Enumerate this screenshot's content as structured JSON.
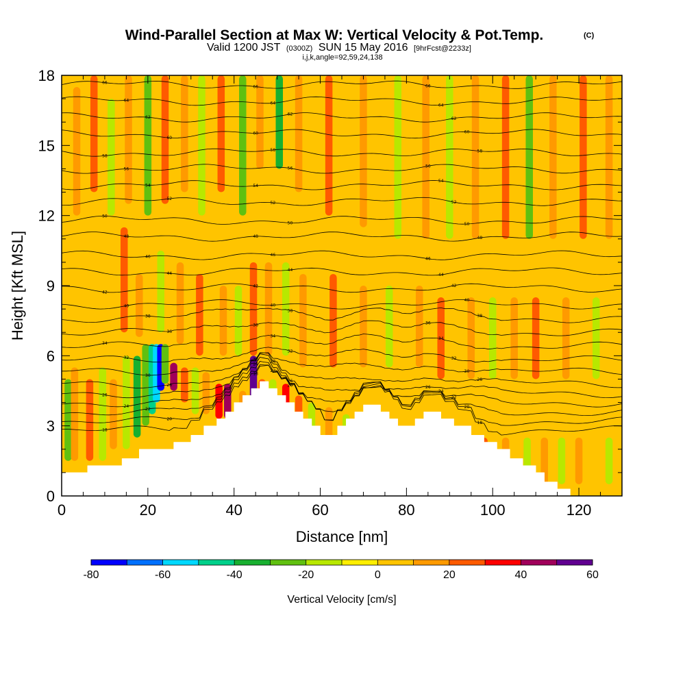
{
  "title": {
    "main": "Wind-Parallel Section at Max W: Vertical Velocity & Pot.Temp.",
    "copyright": "(C)",
    "valid_prefix": "Valid 1200 JST",
    "valid_utc": "(0300Z)",
    "valid_date": "SUN 15 May 2016",
    "forecast": "[9hrFcst@2233z]",
    "indices": "i,j,k,angle=92,59,24,138"
  },
  "chart_data": {
    "type": "heatmap",
    "xlabel": "Distance [nm]",
    "ylabel": "Height [Kft MSL]",
    "xlim": [
      0,
      130
    ],
    "ylim": [
      0,
      18
    ],
    "x_ticks": [
      0,
      20,
      40,
      60,
      80,
      100,
      120
    ],
    "y_ticks": [
      0,
      3,
      6,
      9,
      12,
      15,
      18
    ],
    "colorbar": {
      "label": "Vertical Velocity [cm/s]",
      "levels": [
        -80,
        -70,
        -60,
        -50,
        -40,
        -30,
        -20,
        -10,
        0,
        10,
        20,
        30,
        40,
        50,
        60
      ],
      "tick_labels": [
        "-80",
        "-60",
        "-40",
        "-20",
        "0",
        "20",
        "40",
        "60"
      ],
      "colors": [
        "#0000ff",
        "#0070ff",
        "#00d8ff",
        "#00d08a",
        "#18b030",
        "#60c010",
        "#b8e800",
        "#ffee00",
        "#ffc400",
        "#ff9a00",
        "#ff5a00",
        "#ff0000",
        "#a0005a",
        "#600090"
      ]
    },
    "background_velocity_cm_s": 0,
    "terrain_profile": [
      [
        0,
        1.0
      ],
      [
        6,
        1.0
      ],
      [
        6,
        1.3
      ],
      [
        14,
        1.3
      ],
      [
        14,
        1.6
      ],
      [
        18,
        1.6
      ],
      [
        18,
        2.0
      ],
      [
        26,
        2.0
      ],
      [
        26,
        2.3
      ],
      [
        30,
        2.3
      ],
      [
        30,
        2.6
      ],
      [
        33,
        2.6
      ],
      [
        33,
        3.0
      ],
      [
        36,
        3.0
      ],
      [
        36,
        3.3
      ],
      [
        38,
        3.3
      ],
      [
        38,
        3.6
      ],
      [
        40,
        3.6
      ],
      [
        40,
        4.0
      ],
      [
        42,
        4.0
      ],
      [
        42,
        4.3
      ],
      [
        44,
        4.3
      ],
      [
        44,
        4.6
      ],
      [
        46,
        4.6
      ],
      [
        46,
        4.9
      ],
      [
        48,
        4.9
      ],
      [
        48,
        4.6
      ],
      [
        50,
        4.6
      ],
      [
        50,
        4.3
      ],
      [
        52,
        4.3
      ],
      [
        52,
        4.0
      ],
      [
        54,
        4.0
      ],
      [
        54,
        3.6
      ],
      [
        56,
        3.6
      ],
      [
        56,
        3.3
      ],
      [
        58,
        3.3
      ],
      [
        58,
        3.0
      ],
      [
        60,
        3.0
      ],
      [
        60,
        2.6
      ],
      [
        64,
        2.6
      ],
      [
        64,
        3.0
      ],
      [
        66,
        3.0
      ],
      [
        66,
        3.3
      ],
      [
        68,
        3.3
      ],
      [
        68,
        3.6
      ],
      [
        70,
        3.6
      ],
      [
        70,
        3.9
      ],
      [
        74,
        3.9
      ],
      [
        74,
        3.6
      ],
      [
        76,
        3.6
      ],
      [
        76,
        3.3
      ],
      [
        78,
        3.3
      ],
      [
        78,
        3.0
      ],
      [
        82,
        3.0
      ],
      [
        82,
        3.3
      ],
      [
        84,
        3.3
      ],
      [
        84,
        3.6
      ],
      [
        88,
        3.6
      ],
      [
        88,
        3.3
      ],
      [
        91,
        3.3
      ],
      [
        91,
        3.0
      ],
      [
        95,
        3.0
      ],
      [
        95,
        2.6
      ],
      [
        98,
        2.6
      ],
      [
        98,
        2.3
      ],
      [
        101,
        2.3
      ],
      [
        101,
        2.0
      ],
      [
        104,
        2.0
      ],
      [
        104,
        1.6
      ],
      [
        107,
        1.6
      ],
      [
        107,
        1.3
      ],
      [
        110,
        1.3
      ],
      [
        110,
        1.0
      ],
      [
        112,
        1.0
      ],
      [
        112,
        0.6
      ],
      [
        115,
        0.6
      ],
      [
        115,
        0.3
      ],
      [
        118,
        0.3
      ],
      [
        118,
        0.0
      ],
      [
        0,
        0.0
      ]
    ],
    "velocity_features": [
      {
        "x": 1.5,
        "y0": 1.5,
        "y1": 5.0,
        "value": -30
      },
      {
        "x": 3.0,
        "y0": 1.5,
        "y1": 5.5,
        "value": 15
      },
      {
        "x": 6.5,
        "y0": 1.5,
        "y1": 5.0,
        "value": 20
      },
      {
        "x": 9.5,
        "y0": 1.5,
        "y1": 5.5,
        "value": -20
      },
      {
        "x": 12.0,
        "y0": 2.0,
        "y1": 5.0,
        "value": 15
      },
      {
        "x": 15.0,
        "y0": 2.0,
        "y1": 6.0,
        "value": -15
      },
      {
        "x": 17.5,
        "y0": 2.5,
        "y1": 6.0,
        "value": -35
      },
      {
        "x": 19.5,
        "y0": 3.0,
        "y1": 6.5,
        "value": -30
      },
      {
        "x": 21.0,
        "y0": 3.5,
        "y1": 6.5,
        "value": -45
      },
      {
        "x": 22.0,
        "y0": 4.0,
        "y1": 6.5,
        "value": -60
      },
      {
        "x": 23.0,
        "y0": 4.5,
        "y1": 6.5,
        "value": -80
      },
      {
        "x": 24.0,
        "y0": 4.8,
        "y1": 6.5,
        "value": -25
      },
      {
        "x": 26.0,
        "y0": 4.5,
        "y1": 5.7,
        "value": 40
      },
      {
        "x": 28.5,
        "y0": 4.0,
        "y1": 5.5,
        "value": 25
      },
      {
        "x": 31.0,
        "y0": 3.5,
        "y1": 5.5,
        "value": -20
      },
      {
        "x": 33.5,
        "y0": 3.5,
        "y1": 5.3,
        "value": 15
      },
      {
        "x": 36.5,
        "y0": 3.3,
        "y1": 4.8,
        "value": 30
      },
      {
        "x": 38.5,
        "y0": 3.3,
        "y1": 4.8,
        "value": 40
      },
      {
        "x": 42.0,
        "y0": 3.3,
        "y1": 4.5,
        "value": 15
      },
      {
        "x": 44.5,
        "y0": 3.5,
        "y1": 6.0,
        "value": 60
      },
      {
        "x": 46.5,
        "y0": 3.5,
        "y1": 5.0,
        "value": 20
      },
      {
        "x": 49.0,
        "y0": 3.5,
        "y1": 5.0,
        "value": -20
      },
      {
        "x": 52.0,
        "y0": 3.0,
        "y1": 4.8,
        "value": 30
      },
      {
        "x": 55.0,
        "y0": 2.8,
        "y1": 4.3,
        "value": 20
      },
      {
        "x": 58.0,
        "y0": 2.5,
        "y1": 4.0,
        "value": -20
      },
      {
        "x": 62.0,
        "y0": 1.0,
        "y1": 3.8,
        "value": 15
      },
      {
        "x": 66.0,
        "y0": 0.5,
        "y1": 3.5,
        "value": -20
      },
      {
        "x": 70.0,
        "y0": 0.5,
        "y1": 3.5,
        "value": 15
      },
      {
        "x": 73.0,
        "y0": 0.5,
        "y1": 3.2,
        "value": -20
      },
      {
        "x": 77.5,
        "y0": 0.5,
        "y1": 3.0,
        "value": 30
      },
      {
        "x": 82.0,
        "y0": 0.5,
        "y1": 3.0,
        "value": 15
      },
      {
        "x": 85.0,
        "y0": 0.5,
        "y1": 2.5,
        "value": -35
      },
      {
        "x": 88.0,
        "y0": 0.5,
        "y1": 2.5,
        "value": 20
      },
      {
        "x": 93.0,
        "y0": 0.5,
        "y1": 2.5,
        "value": 15
      },
      {
        "x": 98.0,
        "y0": 0.5,
        "y1": 2.5,
        "value": 20
      },
      {
        "x": 103.0,
        "y0": 0.5,
        "y1": 2.5,
        "value": 15
      },
      {
        "x": 108.0,
        "y0": 0.5,
        "y1": 2.5,
        "value": -20
      },
      {
        "x": 112.0,
        "y0": 0.5,
        "y1": 2.5,
        "value": 15
      },
      {
        "x": 116.0,
        "y0": 0.5,
        "y1": 2.5,
        "value": -20
      },
      {
        "x": 120.0,
        "y0": 0.5,
        "y1": 2.5,
        "value": 15
      },
      {
        "x": 127.0,
        "y0": 0.5,
        "y1": 2.5,
        "value": -20
      },
      {
        "x": 14.5,
        "y0": 7.0,
        "y1": 11.5,
        "value": 20
      },
      {
        "x": 18.0,
        "y0": 6.8,
        "y1": 9.5,
        "value": 15
      },
      {
        "x": 23.0,
        "y0": 7.0,
        "y1": 10.5,
        "value": -20
      },
      {
        "x": 27.5,
        "y0": 6.5,
        "y1": 10.0,
        "value": 15
      },
      {
        "x": 32.0,
        "y0": 6.0,
        "y1": 9.5,
        "value": 20
      },
      {
        "x": 37.5,
        "y0": 6.0,
        "y1": 9.0,
        "value": 15
      },
      {
        "x": 41.0,
        "y0": 6.0,
        "y1": 9.0,
        "value": -15
      },
      {
        "x": 44.5,
        "y0": 6.0,
        "y1": 10.0,
        "value": 20
      },
      {
        "x": 48.0,
        "y0": 6.0,
        "y1": 10.0,
        "value": 15
      },
      {
        "x": 52.0,
        "y0": 6.0,
        "y1": 10.0,
        "value": -20
      },
      {
        "x": 56.0,
        "y0": 5.5,
        "y1": 9.5,
        "value": 15
      },
      {
        "x": 63.0,
        "y0": 5.5,
        "y1": 9.5,
        "value": 20
      },
      {
        "x": 70.0,
        "y0": 5.5,
        "y1": 9.0,
        "value": 15
      },
      {
        "x": 76.0,
        "y0": 5.5,
        "y1": 9.0,
        "value": -15
      },
      {
        "x": 83.0,
        "y0": 5.5,
        "y1": 9.0,
        "value": 15
      },
      {
        "x": 88.0,
        "y0": 5.0,
        "y1": 8.5,
        "value": 20
      },
      {
        "x": 95.0,
        "y0": 5.0,
        "y1": 8.5,
        "value": 15
      },
      {
        "x": 100.0,
        "y0": 5.0,
        "y1": 8.5,
        "value": -15
      },
      {
        "x": 105.0,
        "y0": 5.0,
        "y1": 8.5,
        "value": 15
      },
      {
        "x": 110.0,
        "y0": 5.0,
        "y1": 8.5,
        "value": 20
      },
      {
        "x": 117.0,
        "y0": 5.0,
        "y1": 8.5,
        "value": 15
      },
      {
        "x": 124.0,
        "y0": 5.0,
        "y1": 8.5,
        "value": -15
      },
      {
        "x": 3.5,
        "y0": 12.0,
        "y1": 17.5,
        "value": 15
      },
      {
        "x": 7.5,
        "y0": 13.0,
        "y1": 18.0,
        "value": 20
      },
      {
        "x": 11.5,
        "y0": 12.0,
        "y1": 17.0,
        "value": -20
      },
      {
        "x": 15.5,
        "y0": 12.5,
        "y1": 18.0,
        "value": 15
      },
      {
        "x": 20.0,
        "y0": 12.0,
        "y1": 18.0,
        "value": -30
      },
      {
        "x": 24.0,
        "y0": 12.5,
        "y1": 18.0,
        "value": 20
      },
      {
        "x": 28.5,
        "y0": 13.0,
        "y1": 18.0,
        "value": 15
      },
      {
        "x": 32.5,
        "y0": 12.0,
        "y1": 18.0,
        "value": -20
      },
      {
        "x": 37.0,
        "y0": 13.0,
        "y1": 18.0,
        "value": 20
      },
      {
        "x": 42.0,
        "y0": 12.0,
        "y1": 18.0,
        "value": -25
      },
      {
        "x": 46.0,
        "y0": 14.0,
        "y1": 18.0,
        "value": 15
      },
      {
        "x": 50.5,
        "y0": 14.0,
        "y1": 18.0,
        "value": -40
      },
      {
        "x": 55.0,
        "y0": 13.0,
        "y1": 18.0,
        "value": 15
      },
      {
        "x": 62.0,
        "y0": 12.0,
        "y1": 18.0,
        "value": 20
      },
      {
        "x": 70.0,
        "y0": 11.5,
        "y1": 18.0,
        "value": 15
      },
      {
        "x": 78.0,
        "y0": 11.0,
        "y1": 18.0,
        "value": -15
      },
      {
        "x": 84.5,
        "y0": 11.0,
        "y1": 18.0,
        "value": 15
      },
      {
        "x": 90.0,
        "y0": 11.0,
        "y1": 18.0,
        "value": -15
      },
      {
        "x": 96.0,
        "y0": 11.0,
        "y1": 18.0,
        "value": 15
      },
      {
        "x": 103.0,
        "y0": 11.0,
        "y1": 18.0,
        "value": 20
      },
      {
        "x": 108.5,
        "y0": 11.0,
        "y1": 18.0,
        "value": -25
      },
      {
        "x": 114.0,
        "y0": 11.0,
        "y1": 18.0,
        "value": 15
      },
      {
        "x": 121.0,
        "y0": 11.0,
        "y1": 18.0,
        "value": 20
      },
      {
        "x": 127.0,
        "y0": 11.0,
        "y1": 18.0,
        "value": 15
      }
    ],
    "isentropes": {
      "label_values": [
        "66",
        "64",
        "62",
        "60",
        "58",
        "56",
        "54",
        "52",
        "50",
        "48",
        "46",
        "44",
        "42",
        "40",
        "38",
        "36",
        "34",
        "32",
        "30",
        "28",
        "26",
        "24",
        "22",
        "20",
        "18"
      ],
      "base_heights": [
        17.6,
        16.9,
        16.2,
        15.5,
        14.7,
        14.0,
        13.3,
        12.6,
        11.8,
        11.1,
        10.3,
        9.6,
        8.9,
        8.2,
        7.6,
        7.0,
        6.4,
        5.8,
        5.3,
        4.8,
        4.4,
        4.0,
        3.6,
        3.2,
        2.8
      ]
    }
  }
}
